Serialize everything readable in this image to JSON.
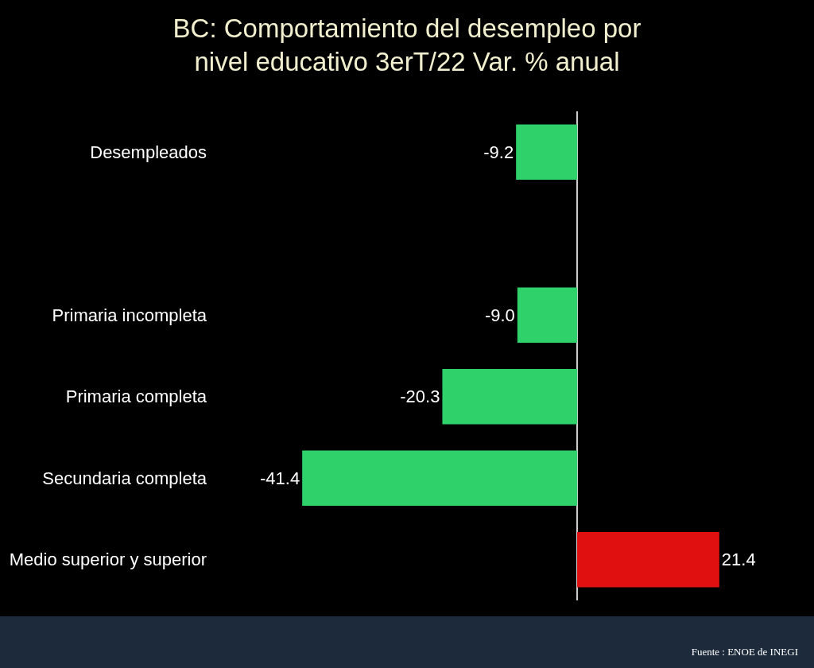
{
  "chart_data": {
    "type": "bar",
    "orientation": "horizontal",
    "title": "BC: Comportamiento del desempleo por\nnivel educativo 3erT/22 Var. % anual",
    "categories": [
      "Desempleados",
      null,
      "Primaria incompleta",
      "Primaria completa",
      "Secundaria completa",
      "Medio superior y superior"
    ],
    "values": [
      -9.2,
      null,
      -9.0,
      -20.3,
      -41.4,
      21.4
    ],
    "colors": [
      "#2fd16a",
      "#2fd16a",
      "#2fd16a",
      "#2fd16a",
      "#2fd16a",
      "#e01010"
    ],
    "value_labels": [
      "-9.2",
      null,
      "-9.0",
      "-20.3",
      "-41.4",
      "21.4"
    ],
    "tick_labels": "y",
    "grid": false,
    "legend": false,
    "annotations": [
      "Fuente : ENOE de INEGI"
    ]
  }
}
